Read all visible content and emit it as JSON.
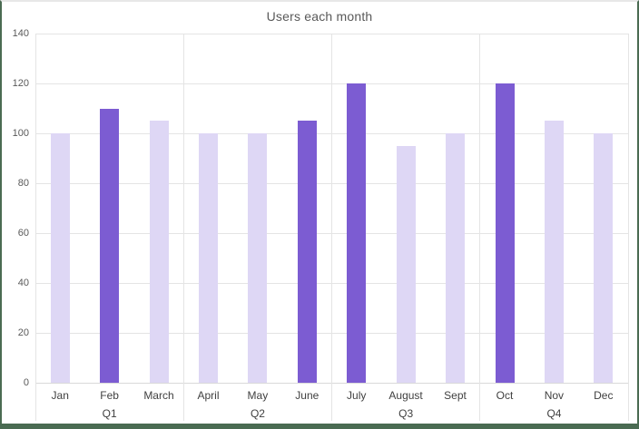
{
  "window": {
    "background": "#ffffff",
    "border_green": "#4a6b52",
    "border_top_gray": "#e7e7e7"
  },
  "chart_data": {
    "type": "bar",
    "title": "Users each month",
    "categories": [
      "Jan",
      "Feb",
      "March",
      "April",
      "May",
      "June",
      "July",
      "August",
      "Sept",
      "Oct",
      "Nov",
      "Dec"
    ],
    "values": [
      100,
      110,
      105,
      100,
      100,
      105,
      120,
      95,
      100,
      120,
      105,
      100
    ],
    "highlighted": [
      "Feb",
      "June",
      "July",
      "Oct"
    ],
    "group_labels": [
      "Q1",
      "Q2",
      "Q3",
      "Q4"
    ],
    "categories_per_group": 3,
    "ylim": [
      0,
      140
    ],
    "ytick_step": 20,
    "grid": true,
    "legend": "none",
    "colors": {
      "bar_default": "#ded7f5",
      "bar_highlight": "#7c5cd2",
      "gridline": "#e4e4e4",
      "axis_line": "#d9d9d9",
      "title_text": "#595959",
      "ytick_text": "#595959",
      "category_text": "#404040"
    }
  }
}
